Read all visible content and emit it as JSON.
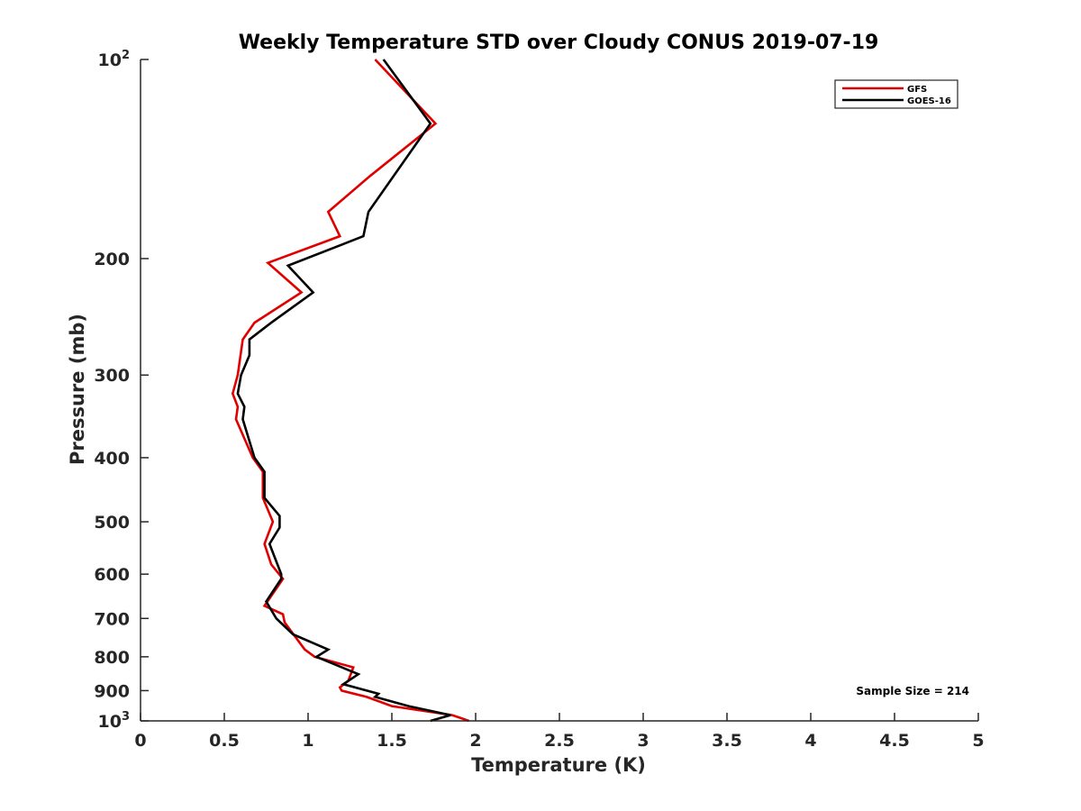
{
  "chart_data": {
    "type": "line",
    "title": "Weekly Temperature STD over Cloudy CONUS 2019-07-19",
    "xlabel": "Temperature (K)",
    "ylabel": "Pressure (mb)",
    "xlim": [
      0,
      5
    ],
    "ylim": [
      100,
      1000
    ],
    "y_scale": "log",
    "y_reversed": true,
    "x_ticks": [
      0,
      0.5,
      1,
      1.5,
      2,
      2.5,
      3,
      3.5,
      4,
      4.5,
      5
    ],
    "x_tick_labels": [
      "0",
      "0.5",
      "1",
      "1.5",
      "2",
      "2.5",
      "3",
      "3.5",
      "4",
      "4.5",
      "5"
    ],
    "y_ticks": [
      100,
      200,
      300,
      400,
      500,
      600,
      700,
      800,
      900,
      1000
    ],
    "y_tick_labels": [
      {
        "base": "10",
        "sup": "2"
      },
      {
        "base": "200",
        "sup": ""
      },
      {
        "base": "300",
        "sup": ""
      },
      {
        "base": "400",
        "sup": ""
      },
      {
        "base": "500",
        "sup": ""
      },
      {
        "base": "600",
        "sup": ""
      },
      {
        "base": "700",
        "sup": ""
      },
      {
        "base": "800",
        "sup": ""
      },
      {
        "base": "900",
        "sup": ""
      },
      {
        "base": "10",
        "sup": "3"
      }
    ],
    "grid": false,
    "legend_position": "top-right",
    "annotation": "Sample Size = 214",
    "series": [
      {
        "name": "GFS",
        "color": "#e00000",
        "points": [
          [
            1.4,
            100
          ],
          [
            1.76,
            125
          ],
          [
            1.37,
            150
          ],
          [
            1.12,
            170
          ],
          [
            1.19,
            185
          ],
          [
            0.76,
            203
          ],
          [
            0.96,
            225
          ],
          [
            0.68,
            250
          ],
          [
            0.61,
            265
          ],
          [
            0.58,
            300
          ],
          [
            0.55,
            320
          ],
          [
            0.58,
            335
          ],
          [
            0.57,
            350
          ],
          [
            0.67,
            400
          ],
          [
            0.73,
            420
          ],
          [
            0.73,
            460
          ],
          [
            0.79,
            500
          ],
          [
            0.74,
            540
          ],
          [
            0.78,
            580
          ],
          [
            0.85,
            610
          ],
          [
            0.74,
            670
          ],
          [
            0.85,
            690
          ],
          [
            0.86,
            710
          ],
          [
            0.93,
            750
          ],
          [
            0.98,
            780
          ],
          [
            1.04,
            800
          ],
          [
            1.27,
            830
          ],
          [
            1.24,
            870
          ],
          [
            1.19,
            890
          ],
          [
            1.2,
            900
          ],
          [
            1.35,
            920
          ],
          [
            1.5,
            950
          ],
          [
            1.86,
            980
          ],
          [
            1.96,
            1000
          ]
        ]
      },
      {
        "name": "GOES-16",
        "color": "#000000",
        "points": [
          [
            1.45,
            100
          ],
          [
            1.73,
            125
          ],
          [
            1.36,
            170
          ],
          [
            1.33,
            185
          ],
          [
            0.88,
            205
          ],
          [
            1.03,
            225
          ],
          [
            0.78,
            250
          ],
          [
            0.65,
            265
          ],
          [
            0.65,
            280
          ],
          [
            0.6,
            300
          ],
          [
            0.58,
            320
          ],
          [
            0.62,
            335
          ],
          [
            0.61,
            350
          ],
          [
            0.68,
            400
          ],
          [
            0.74,
            420
          ],
          [
            0.74,
            460
          ],
          [
            0.83,
            490
          ],
          [
            0.83,
            510
          ],
          [
            0.77,
            540
          ],
          [
            0.84,
            600
          ],
          [
            0.84,
            610
          ],
          [
            0.75,
            660
          ],
          [
            0.81,
            700
          ],
          [
            0.91,
            740
          ],
          [
            1.12,
            780
          ],
          [
            1.05,
            800
          ],
          [
            1.3,
            850
          ],
          [
            1.21,
            880
          ],
          [
            1.42,
            910
          ],
          [
            1.4,
            920
          ],
          [
            1.6,
            950
          ],
          [
            1.85,
            980
          ],
          [
            1.73,
            1000
          ]
        ]
      }
    ]
  }
}
